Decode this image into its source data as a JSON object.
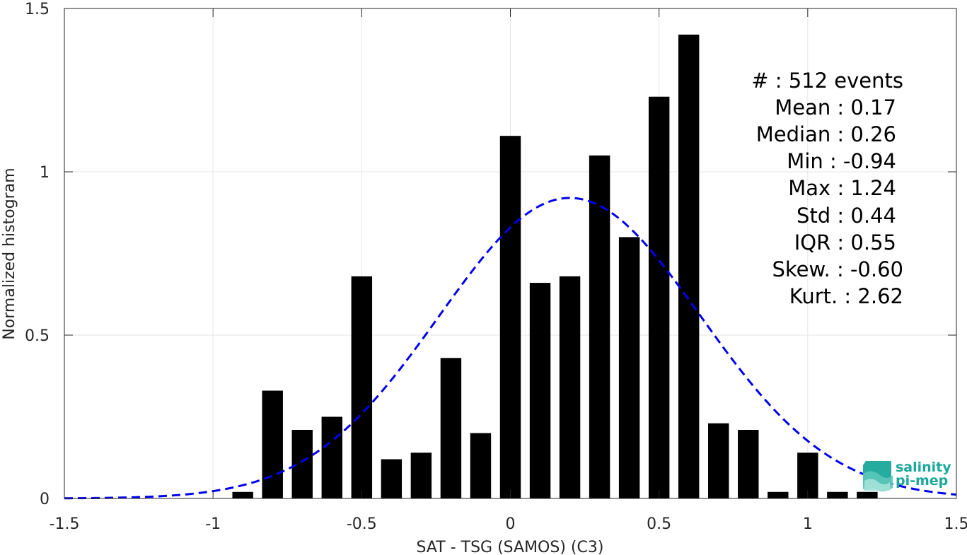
{
  "chart_data": {
    "type": "bar",
    "xlabel": "SAT - TSG (SAMOS) (C3)",
    "ylabel": "Normalized histogram",
    "xlim": [
      -1.5,
      1.5
    ],
    "ylim": [
      0,
      1.5
    ],
    "grid": true,
    "x_ticks": [
      -1.5,
      -1,
      -0.5,
      0,
      0.5,
      1,
      1.5
    ],
    "x_tick_labels": [
      "-1.5",
      "-1",
      "-0.5",
      "0",
      "0.5",
      "1",
      "1.5"
    ],
    "y_ticks": [
      0,
      0.5,
      1,
      1.5
    ],
    "y_tick_labels": [
      "0",
      "0.5",
      "1",
      "1.5"
    ],
    "bar_width": 0.07,
    "bar_color": "#000000",
    "x": [
      -0.9,
      -0.8,
      -0.7,
      -0.6,
      -0.5,
      -0.4,
      -0.3,
      -0.2,
      -0.1,
      0.0,
      0.1,
      0.2,
      0.3,
      0.4,
      0.5,
      0.6,
      0.7,
      0.8,
      0.9,
      1.0,
      1.1,
      1.2
    ],
    "values": [
      0.02,
      0.33,
      0.21,
      0.25,
      0.68,
      0.12,
      0.14,
      0.43,
      0.2,
      1.11,
      0.66,
      0.68,
      1.05,
      0.8,
      1.23,
      1.42,
      0.23,
      0.21,
      0.02,
      0.14,
      0.02,
      0.02
    ],
    "fit_curve": {
      "type": "gaussian",
      "mean": 0.2,
      "peak": 0.92,
      "std": 0.44,
      "color": "#0000ee",
      "style": "dashed"
    }
  },
  "stats": [
    {
      "label": "#  : 512 events",
      "indent": 0
    },
    {
      "label": "Mean : 0.17",
      "indent": 1
    },
    {
      "label": "Median : 0.26",
      "indent": 1
    },
    {
      "label": "Min : -0.94",
      "indent": 1
    },
    {
      "label": "Max : 1.24",
      "indent": 1
    },
    {
      "label": "Std : 0.44",
      "indent": 1
    },
    {
      "label": "IQR : 0.55",
      "indent": 1
    },
    {
      "label": "Skew. : -0.60",
      "indent": 1
    },
    {
      "label": "Kurt. : 2.62",
      "indent": 0
    }
  ],
  "logo": {
    "line1": "salinity",
    "line2": "pi-mep",
    "color": "#1aa89a"
  },
  "colors": {
    "axis": "#262626",
    "grid": "#e6e6e6"
  }
}
